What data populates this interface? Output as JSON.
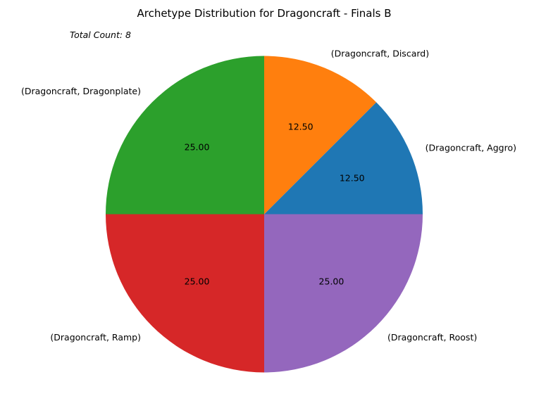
{
  "chart_data": {
    "type": "pie",
    "title": "Archetype Distribution for Dragoncraft - Finals B",
    "annotation": "Total Count: 8",
    "slices": [
      {
        "label": "(Dragoncraft, Aggro)",
        "value": 12.5,
        "pct_label": "12.50",
        "color": "#1f77b4"
      },
      {
        "label": "(Dragoncraft, Discard)",
        "value": 12.5,
        "pct_label": "12.50",
        "color": "#ff7f0e"
      },
      {
        "label": "(Dragoncraft, Dragonplate)",
        "value": 25,
        "pct_label": "25.00",
        "color": "#2ca02c"
      },
      {
        "label": "(Dragoncraft, Ramp)",
        "value": 25,
        "pct_label": "25.00",
        "color": "#d62728"
      },
      {
        "label": "(Dragoncraft, Roost)",
        "value": 25,
        "pct_label": "25.00",
        "color": "#9467bd"
      }
    ],
    "start_angle": 0,
    "direction": "counterclockwise",
    "legend": "none"
  }
}
